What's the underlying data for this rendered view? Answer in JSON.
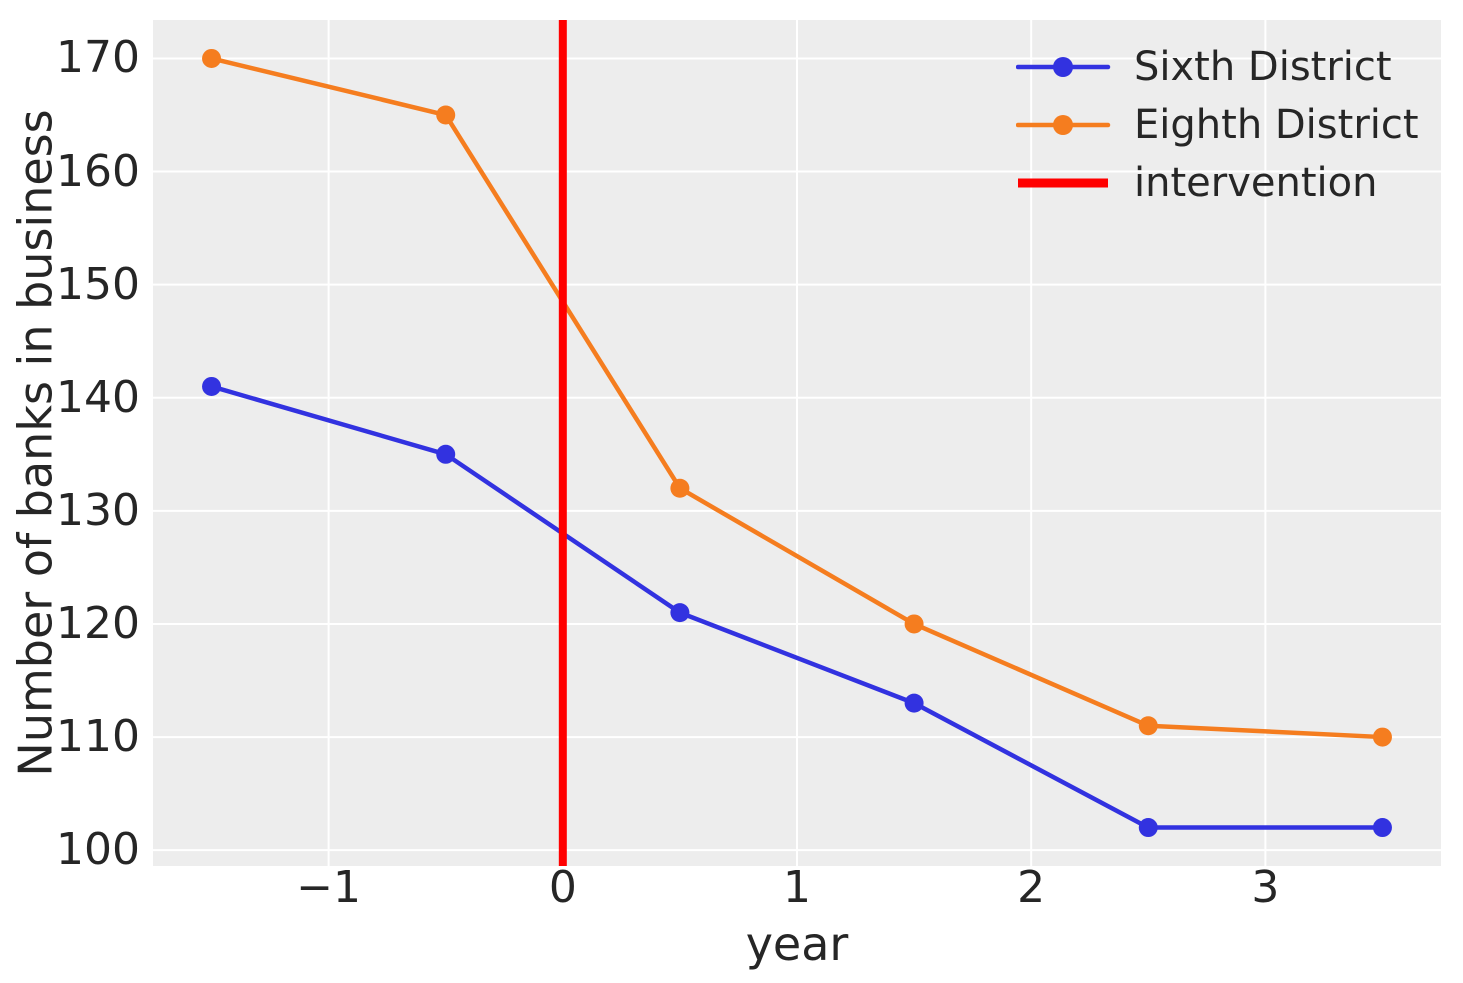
{
  "chart_data": {
    "type": "line",
    "xlabel": "year",
    "ylabel": "Number of banks in business",
    "x": [
      -1.5,
      -0.5,
      0.5,
      1.5,
      2.5,
      3.5
    ],
    "series": [
      {
        "name": "Sixth District",
        "color": "#3232e0",
        "values": [
          141,
          135,
          121,
          113,
          102,
          102
        ]
      },
      {
        "name": "Eighth District",
        "color": "#f57d1f",
        "values": [
          170,
          165,
          132,
          120,
          111,
          110
        ]
      }
    ],
    "intervention": {
      "label": "intervention",
      "x": 0,
      "color": "#ff0000"
    },
    "xticks": {
      "values": [
        -1,
        0,
        1,
        2,
        3
      ],
      "labels": [
        "−1",
        "0",
        "1",
        "2",
        "3"
      ]
    },
    "yticks": {
      "values": [
        100,
        110,
        120,
        130,
        140,
        150,
        160,
        170
      ],
      "labels": [
        "100",
        "110",
        "120",
        "130",
        "140",
        "150",
        "160",
        "170"
      ]
    },
    "xlim": [
      -1.75,
      3.75
    ],
    "ylim": [
      98.6,
      173.4
    ],
    "grid": true,
    "legend_position": "upper right",
    "colors": {
      "plot_bg": "#ededed",
      "grid": "#ffffff",
      "text": "#262626",
      "figure_bg": "#ffffff"
    }
  }
}
